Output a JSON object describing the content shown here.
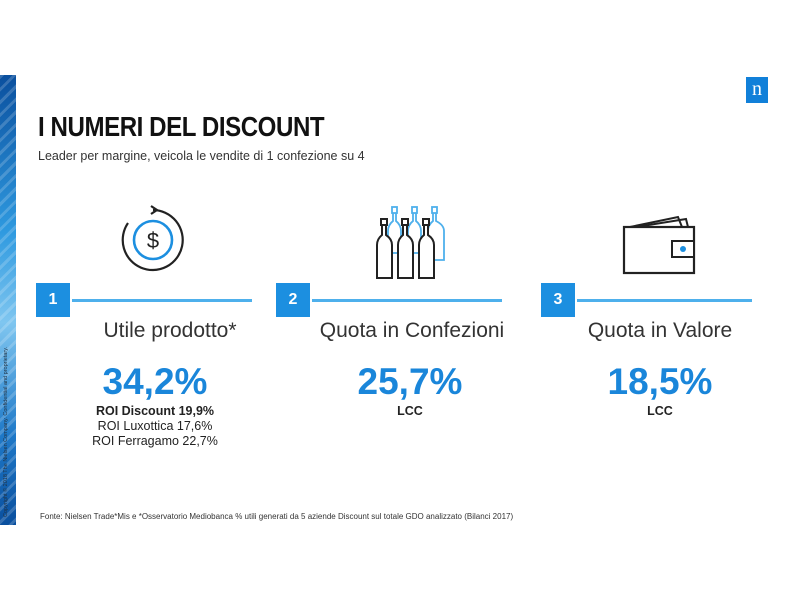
{
  "slide": {
    "title": "I NUMERI DEL DISCOUNT",
    "subtitle": "Leader per margine, veicola le vendite di 1 confezione su 4",
    "logo": "n",
    "copyright": "Copyright © 2018 The Nielsen Company. Confidential and proprietary.",
    "footnote": "Fonte: Nielsen Trade*Mis e *Osservatorio Mediobanca  % utili generati da  5 aziende Discount sul totale GDO analizzato (Bilanci 2017)",
    "accent_color": "#1a86da"
  },
  "kpis": [
    {
      "number": "1",
      "icon": "dollar-cycle-icon",
      "label": "Utile prodotto*",
      "value": "34,2%",
      "notes": [
        "ROI Discount 19,9%",
        "ROI Luxottica 17,6%",
        "ROI Ferragamo 22,7%"
      ]
    },
    {
      "number": "2",
      "icon": "bottles-icon",
      "label": "Quota in Confezioni",
      "value": "25,7%",
      "notes": [
        "LCC"
      ]
    },
    {
      "number": "3",
      "icon": "wallet-icon",
      "label": "Quota in Valore",
      "value": "18,5%",
      "notes": [
        "LCC"
      ]
    }
  ]
}
